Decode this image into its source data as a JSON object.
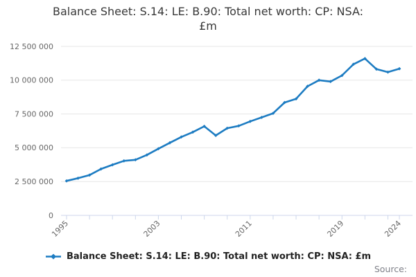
{
  "header": {
    "title_lines": [
      "Balance Sheet: S.14: LE: B.90: Total net worth: CP: NSA:",
      "£m"
    ]
  },
  "legend": {
    "label": "Balance Sheet: S.14: LE: B.90: Total net worth: CP: NSA: £m",
    "marker_icon": "line-with-diamond-marker"
  },
  "source": {
    "label": "Source:"
  },
  "colors": {
    "series": "#1d7cc2",
    "grid": "#e6e6e6",
    "axis": "#ccd6eb",
    "tick_label": "#666666",
    "title": "#383838",
    "legend_text": "#222222",
    "source_text": "#7f8088",
    "background": "#ffffff"
  },
  "chart_data": {
    "type": "line",
    "title": "Balance Sheet: S.14: LE: B.90: Total net worth: CP: NSA: £m",
    "xlabel": "",
    "ylabel": "",
    "x": [
      1995,
      1996,
      1997,
      1998,
      1999,
      2000,
      2001,
      2002,
      2003,
      2004,
      2005,
      2006,
      2007,
      2008,
      2009,
      2010,
      2011,
      2012,
      2013,
      2014,
      2015,
      2016,
      2017,
      2018,
      2019,
      2020,
      2021,
      2022,
      2023,
      2024
    ],
    "series": [
      {
        "name": "Balance Sheet: S.14: LE: B.90: Total net worth: CP: NSA: £m",
        "values": [
          2550000,
          2750000,
          2980000,
          3430000,
          3740000,
          4030000,
          4110000,
          4470000,
          4930000,
          5370000,
          5800000,
          6160000,
          6590000,
          5910000,
          6450000,
          6620000,
          6950000,
          7250000,
          7550000,
          8350000,
          8620000,
          9550000,
          10000000,
          9900000,
          10350000,
          11180000,
          11600000,
          10820000,
          10600000,
          10850000
        ]
      }
    ],
    "ylim": [
      0,
      12500000
    ],
    "y_ticks": [
      0,
      2500000,
      5000000,
      7500000,
      10000000,
      12500000
    ],
    "y_tick_labels": [
      "0",
      "2 500 000",
      "5 000 000",
      "7 500 000",
      "10 000 000",
      "12 500 000"
    ],
    "x_ticks": [
      1995,
      1997,
      1999,
      2001,
      2003,
      2005,
      2007,
      2009,
      2011,
      2013,
      2015,
      2017,
      2019,
      2021,
      2023,
      2024
    ],
    "x_labeled_ticks": [
      1995,
      2003,
      2011,
      2019,
      2024
    ],
    "x_tick_labels": [
      "1995",
      "2003",
      "2011",
      "2019",
      "2024"
    ],
    "grid": "horizontal",
    "legend_position": "bottom",
    "marker": "diamond"
  }
}
